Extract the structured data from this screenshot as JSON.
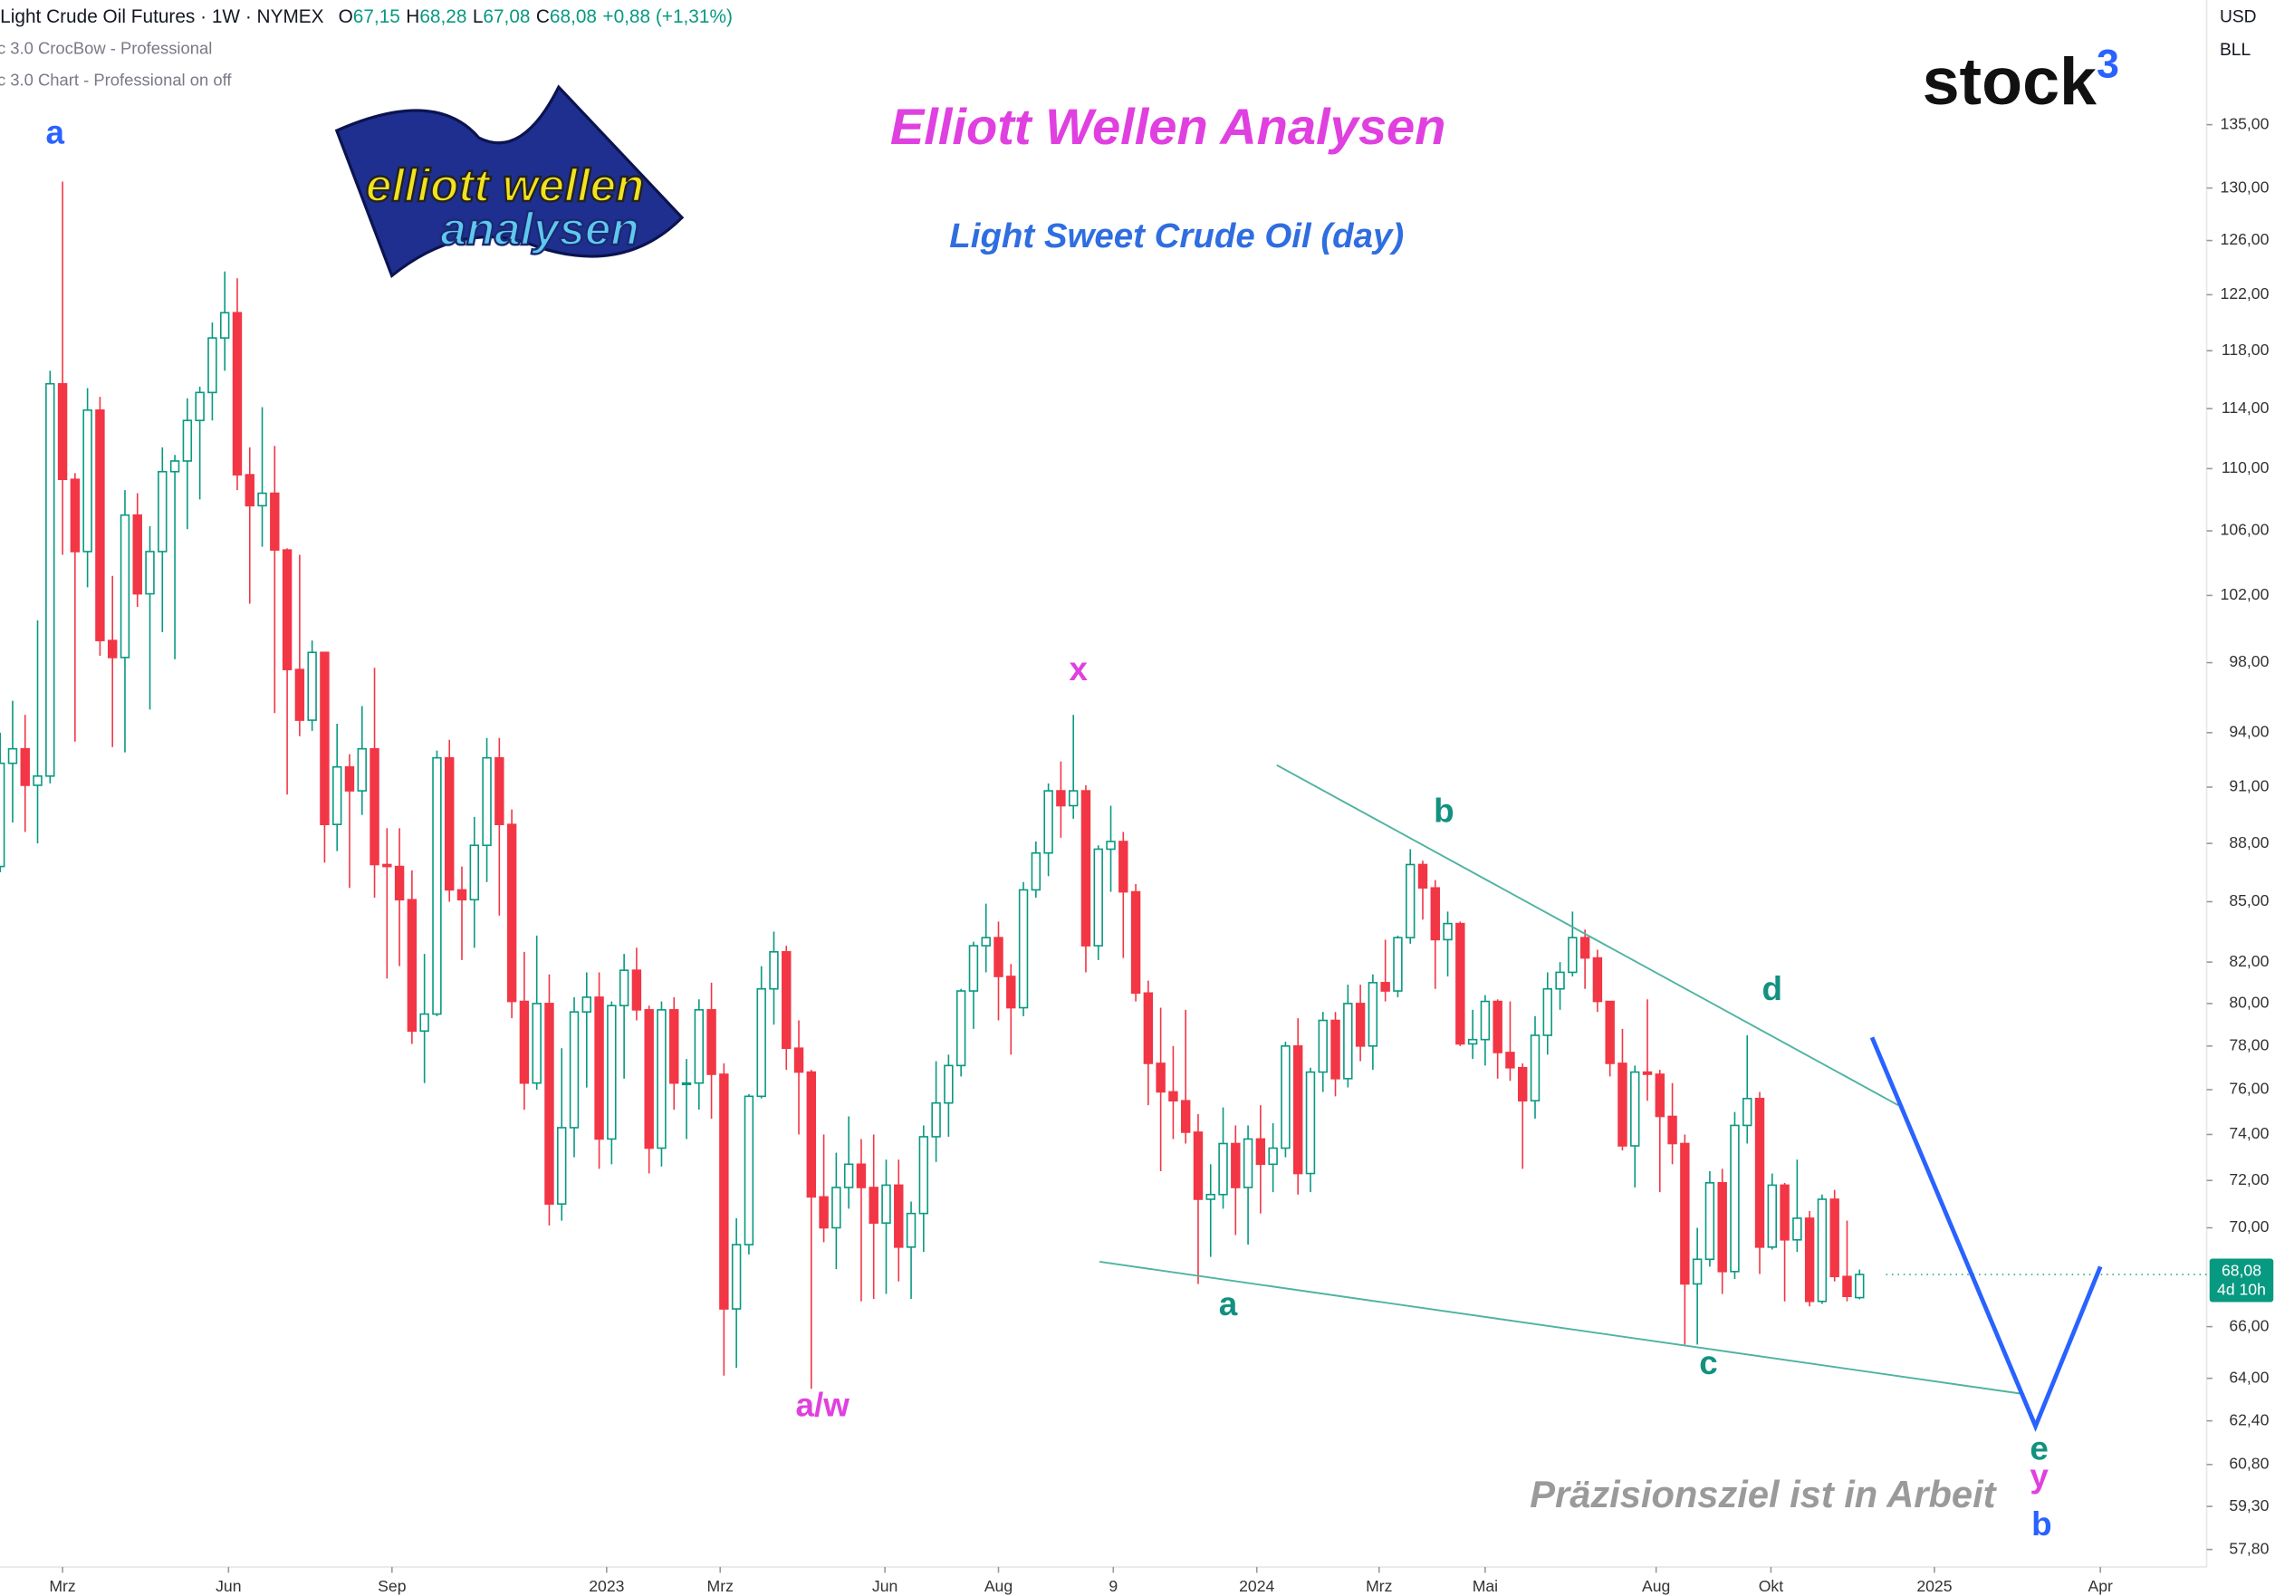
{
  "header": {
    "symbol": "Light Crude Oil Futures · 1W · NYMEX",
    "ohlc": [
      {
        "key": "O",
        "value": "67,15"
      },
      {
        "key": "H",
        "value": "68,28"
      },
      {
        "key": "L",
        "value": "67,08"
      },
      {
        "key": "C",
        "value": "68,08"
      }
    ],
    "change": "+0,88 (+1,31%)",
    "indicators": [
      "c 3.0 CrocBow - Professional",
      "c 3.0 Chart - Professional on off"
    ],
    "currency": "USD",
    "unit": "BLL"
  },
  "logo": {
    "text": "stock",
    "sup": "3"
  },
  "badge": {
    "line1": "elliott wellen",
    "line2": "analysen"
  },
  "chart_data": {
    "type": "candlestick",
    "title": "Elliott Wellen Analysen",
    "subtitle": "Light Sweet Crude Oil (day)",
    "note": "Präzisionsziel ist in Arbeit",
    "up_color": "#089981",
    "down_color": "#f23645",
    "log_scale": true,
    "grid": false,
    "xlim": [
      0,
      176.7
    ],
    "ylim": [
      57.2,
      145.4
    ],
    "xticks": [
      {
        "value": 5,
        "label": "Mrz"
      },
      {
        "value": 18.3,
        "label": "Jun"
      },
      {
        "value": 31.4,
        "label": "Sep"
      },
      {
        "value": 48.6,
        "label": "2023"
      },
      {
        "value": 57.7,
        "label": "Mrz"
      },
      {
        "value": 70.9,
        "label": "Jun"
      },
      {
        "value": 80,
        "label": "Aug"
      },
      {
        "value": 89.2,
        "label": "9"
      },
      {
        "value": 100.7,
        "label": "2024"
      },
      {
        "value": 110.5,
        "label": "Mrz"
      },
      {
        "value": 119,
        "label": "Mai"
      },
      {
        "value": 132.7,
        "label": "Aug"
      },
      {
        "value": 141.9,
        "label": "Okt"
      },
      {
        "value": 155,
        "label": "2025"
      },
      {
        "value": 168.3,
        "label": "Apr"
      }
    ],
    "yticks": [
      {
        "value": 135,
        "label": "135,00"
      },
      {
        "value": 130,
        "label": "130,00"
      },
      {
        "value": 126,
        "label": "126,00"
      },
      {
        "value": 122,
        "label": "122,00"
      },
      {
        "value": 118,
        "label": "118,00"
      },
      {
        "value": 114,
        "label": "114,00"
      },
      {
        "value": 110,
        "label": "110,00"
      },
      {
        "value": 106,
        "label": "106,00"
      },
      {
        "value": 102,
        "label": "102,00"
      },
      {
        "value": 98,
        "label": "98,00"
      },
      {
        "value": 94,
        "label": "94,00"
      },
      {
        "value": 91,
        "label": "91,00"
      },
      {
        "value": 88,
        "label": "88,00"
      },
      {
        "value": 85,
        "label": "85,00"
      },
      {
        "value": 82,
        "label": "82,00"
      },
      {
        "value": 80,
        "label": "80,00"
      },
      {
        "value": 78,
        "label": "78,00"
      },
      {
        "value": 76,
        "label": "76,00"
      },
      {
        "value": 74,
        "label": "74,00"
      },
      {
        "value": 72,
        "label": "72,00"
      },
      {
        "value": 70,
        "label": "70,00"
      },
      {
        "value": 66,
        "label": "66,00"
      },
      {
        "value": 64,
        "label": "64,00"
      },
      {
        "value": 62.4,
        "label": "62,40"
      },
      {
        "value": 60.8,
        "label": "60,80"
      },
      {
        "value": 59.3,
        "label": "59,30"
      },
      {
        "value": 57.8,
        "label": "57,80"
      }
    ],
    "last_price": {
      "value": 68.08,
      "label": "68,08",
      "countdown": "4d 10h"
    },
    "ohlc": [
      [
        86.8,
        94.0,
        86.5,
        92.3
      ],
      [
        92.3,
        95.8,
        89.1,
        93.1
      ],
      [
        93.1,
        95.0,
        88.6,
        91.1
      ],
      [
        91.1,
        100.5,
        88.0,
        91.6
      ],
      [
        91.6,
        116.6,
        91.2,
        115.7
      ],
      [
        115.7,
        130.5,
        104.5,
        109.3
      ],
      [
        109.3,
        109.7,
        93.5,
        104.7
      ],
      [
        104.7,
        115.4,
        102.5,
        113.9
      ],
      [
        113.9,
        114.8,
        98.4,
        99.3
      ],
      [
        99.3,
        103.2,
        93.2,
        98.3
      ],
      [
        98.3,
        108.6,
        92.9,
        107.0
      ],
      [
        107.0,
        108.4,
        101.3,
        102.1
      ],
      [
        102.1,
        106.3,
        95.3,
        104.7
      ],
      [
        104.7,
        111.4,
        99.8,
        109.8
      ],
      [
        109.8,
        110.9,
        98.2,
        110.5
      ],
      [
        110.5,
        114.7,
        106.1,
        113.2
      ],
      [
        113.2,
        115.5,
        108.0,
        115.1
      ],
      [
        115.1,
        120.0,
        113.2,
        118.9
      ],
      [
        118.9,
        123.7,
        116.6,
        120.7
      ],
      [
        120.7,
        123.2,
        108.6,
        109.6
      ],
      [
        109.6,
        111.4,
        101.5,
        107.6
      ],
      [
        107.6,
        114.1,
        105.0,
        108.4
      ],
      [
        108.4,
        111.5,
        95.1,
        104.8
      ],
      [
        104.8,
        104.9,
        90.6,
        97.6
      ],
      [
        97.6,
        104.5,
        93.8,
        94.7
      ],
      [
        94.7,
        99.3,
        94.1,
        98.6
      ],
      [
        98.6,
        98.6,
        87.0,
        89.0
      ],
      [
        89.0,
        94.5,
        87.6,
        92.1
      ],
      [
        92.1,
        92.8,
        85.7,
        90.8
      ],
      [
        90.8,
        95.5,
        89.5,
        93.1
      ],
      [
        93.1,
        97.7,
        85.2,
        86.9
      ],
      [
        86.9,
        88.8,
        81.2,
        86.8
      ],
      [
        86.8,
        88.8,
        81.8,
        85.1
      ],
      [
        85.1,
        86.6,
        78.1,
        78.7
      ],
      [
        78.7,
        82.4,
        76.3,
        79.5
      ],
      [
        79.5,
        93.0,
        79.4,
        92.6
      ],
      [
        92.6,
        93.6,
        85.0,
        85.6
      ],
      [
        85.6,
        86.8,
        82.1,
        85.1
      ],
      [
        85.1,
        89.4,
        82.7,
        87.9
      ],
      [
        87.9,
        93.7,
        86.0,
        92.6
      ],
      [
        92.6,
        93.7,
        84.3,
        89.0
      ],
      [
        89.0,
        89.8,
        79.3,
        80.1
      ],
      [
        80.1,
        82.5,
        75.1,
        76.3
      ],
      [
        76.3,
        83.3,
        76.0,
        80.0
      ],
      [
        80.0,
        81.4,
        70.1,
        71.0
      ],
      [
        71.0,
        77.9,
        70.3,
        74.3
      ],
      [
        74.3,
        80.3,
        73.0,
        79.6
      ],
      [
        79.6,
        81.5,
        76.1,
        80.3
      ],
      [
        80.3,
        81.5,
        72.5,
        73.8
      ],
      [
        73.8,
        80.1,
        72.7,
        79.9
      ],
      [
        79.9,
        82.4,
        76.5,
        81.6
      ],
      [
        81.6,
        82.7,
        79.2,
        79.7
      ],
      [
        79.7,
        79.9,
        72.3,
        73.4
      ],
      [
        73.4,
        80.1,
        72.6,
        79.7
      ],
      [
        79.7,
        80.3,
        75.1,
        76.3
      ],
      [
        76.3,
        77.4,
        73.8,
        76.3
      ],
      [
        76.3,
        80.2,
        75.1,
        79.7
      ],
      [
        79.7,
        81.0,
        74.7,
        76.7
      ],
      [
        76.7,
        77.2,
        64.1,
        66.7
      ],
      [
        66.7,
        70.4,
        64.4,
        69.3
      ],
      [
        69.3,
        75.8,
        68.9,
        75.7
      ],
      [
        75.7,
        81.8,
        75.6,
        80.7
      ],
      [
        80.7,
        83.5,
        79.0,
        82.5
      ],
      [
        82.5,
        82.8,
        76.9,
        77.9
      ],
      [
        77.9,
        79.2,
        74.0,
        76.8
      ],
      [
        76.8,
        76.9,
        63.6,
        71.3
      ],
      [
        71.3,
        74.0,
        69.4,
        70.0
      ],
      [
        70.0,
        73.2,
        68.3,
        71.7
      ],
      [
        71.7,
        74.8,
        70.8,
        72.7
      ],
      [
        72.7,
        73.8,
        67.0,
        71.7
      ],
      [
        71.7,
        74.0,
        67.1,
        70.2
      ],
      [
        70.2,
        72.9,
        67.3,
        71.8
      ],
      [
        71.8,
        72.9,
        67.8,
        69.2
      ],
      [
        69.2,
        71.1,
        67.1,
        70.6
      ],
      [
        70.6,
        74.4,
        69.0,
        73.9
      ],
      [
        73.9,
        77.3,
        72.8,
        75.4
      ],
      [
        75.4,
        77.6,
        73.9,
        77.1
      ],
      [
        77.1,
        80.7,
        76.6,
        80.6
      ],
      [
        80.6,
        83.0,
        78.8,
        82.8
      ],
      [
        82.8,
        84.9,
        81.5,
        83.2
      ],
      [
        83.2,
        84.0,
        79.2,
        81.3
      ],
      [
        81.3,
        81.9,
        77.6,
        79.8
      ],
      [
        79.8,
        86.0,
        79.4,
        85.6
      ],
      [
        85.6,
        88.1,
        85.2,
        87.5
      ],
      [
        87.5,
        91.2,
        86.3,
        90.8
      ],
      [
        90.8,
        92.4,
        88.3,
        90.0
      ],
      [
        90.0,
        95.0,
        89.3,
        90.8
      ],
      [
        90.8,
        91.1,
        81.5,
        82.8
      ],
      [
        82.8,
        87.9,
        82.1,
        87.7
      ],
      [
        87.7,
        90.0,
        85.5,
        88.1
      ],
      [
        88.1,
        88.6,
        82.2,
        85.5
      ],
      [
        85.5,
        85.9,
        80.1,
        80.5
      ],
      [
        80.5,
        81.1,
        75.3,
        77.2
      ],
      [
        77.2,
        79.8,
        72.4,
        75.9
      ],
      [
        75.9,
        78.0,
        73.8,
        75.5
      ],
      [
        75.5,
        79.7,
        73.6,
        74.1
      ],
      [
        74.1,
        74.9,
        67.7,
        71.2
      ],
      [
        71.2,
        72.7,
        68.8,
        71.4
      ],
      [
        71.4,
        75.2,
        70.8,
        73.6
      ],
      [
        73.6,
        74.4,
        69.7,
        71.7
      ],
      [
        71.7,
        74.4,
        69.3,
        73.8
      ],
      [
        73.8,
        75.3,
        70.6,
        72.7
      ],
      [
        72.7,
        74.5,
        71.5,
        73.4
      ],
      [
        73.4,
        78.2,
        73.0,
        78.0
      ],
      [
        78.0,
        79.3,
        71.4,
        72.3
      ],
      [
        72.3,
        77.0,
        71.5,
        76.8
      ],
      [
        76.8,
        79.6,
        75.9,
        79.2
      ],
      [
        79.2,
        79.6,
        75.7,
        76.5
      ],
      [
        76.5,
        80.9,
        76.1,
        80.0
      ],
      [
        80.0,
        80.9,
        77.3,
        78.0
      ],
      [
        78.0,
        81.4,
        76.9,
        81.0
      ],
      [
        81.0,
        83.1,
        80.1,
        80.6
      ],
      [
        80.6,
        83.3,
        80.3,
        83.2
      ],
      [
        83.2,
        87.7,
        82.9,
        86.9
      ],
      [
        86.9,
        87.1,
        84.1,
        85.7
      ],
      [
        85.7,
        86.1,
        80.7,
        83.1
      ],
      [
        83.1,
        84.5,
        81.3,
        83.9
      ],
      [
        83.9,
        84.0,
        78.0,
        78.1
      ],
      [
        78.1,
        79.7,
        77.4,
        78.3
      ],
      [
        78.3,
        80.4,
        77.1,
        80.1
      ],
      [
        80.1,
        80.2,
        76.5,
        77.7
      ],
      [
        77.7,
        80.1,
        76.4,
        77.0
      ],
      [
        77.0,
        77.2,
        72.5,
        75.5
      ],
      [
        75.5,
        79.4,
        74.7,
        78.5
      ],
      [
        78.5,
        81.5,
        77.6,
        80.7
      ],
      [
        80.7,
        82.0,
        79.7,
        81.5
      ],
      [
        81.5,
        84.5,
        81.3,
        83.2
      ],
      [
        83.2,
        83.6,
        80.7,
        82.2
      ],
      [
        82.2,
        82.6,
        79.6,
        80.1
      ],
      [
        80.1,
        80.1,
        76.6,
        77.2
      ],
      [
        77.2,
        78.8,
        73.3,
        73.5
      ],
      [
        73.5,
        77.1,
        71.7,
        76.8
      ],
      [
        76.8,
        80.2,
        75.5,
        76.7
      ],
      [
        76.7,
        76.9,
        71.5,
        74.8
      ],
      [
        74.8,
        76.3,
        72.7,
        73.6
      ],
      [
        73.6,
        74.0,
        65.3,
        67.7
      ],
      [
        67.7,
        70.0,
        65.3,
        68.7
      ],
      [
        68.7,
        72.4,
        68.4,
        71.9
      ],
      [
        71.9,
        72.5,
        67.3,
        68.2
      ],
      [
        68.2,
        75.0,
        67.9,
        74.4
      ],
      [
        74.4,
        78.5,
        73.6,
        75.6
      ],
      [
        75.6,
        75.9,
        68.1,
        69.2
      ],
      [
        69.2,
        72.3,
        69.1,
        71.8
      ],
      [
        71.8,
        71.9,
        67.0,
        69.5
      ],
      [
        69.5,
        72.9,
        69.0,
        70.4
      ],
      [
        70.4,
        70.7,
        66.8,
        67.0
      ],
      [
        67.0,
        71.4,
        66.9,
        71.2
      ],
      [
        71.2,
        71.6,
        67.8,
        68.0
      ],
      [
        68.0,
        70.3,
        67.0,
        67.2
      ],
      [
        67.15,
        68.28,
        67.08,
        68.08
      ]
    ],
    "wave_labels": [
      {
        "text": "a",
        "color": "#2962ff",
        "x": 4.4,
        "y": 134.2
      },
      {
        "text": "x",
        "color": "#e040e0",
        "x": 86.4,
        "y": 97.5
      },
      {
        "text": "a/w",
        "color": "#e040e0",
        "x": 65.9,
        "y": 62.9
      },
      {
        "text": "a",
        "color": "#12917f",
        "x": 98.4,
        "y": 66.8
      },
      {
        "text": "b",
        "color": "#12917f",
        "x": 115.7,
        "y": 89.6
      },
      {
        "text": "c",
        "color": "#12917f",
        "x": 136.9,
        "y": 64.5
      },
      {
        "text": "d",
        "color": "#12917f",
        "x": 142,
        "y": 80.6
      },
      {
        "text": "e",
        "color": "#12917f",
        "x": 163.4,
        "y": 61.3
      },
      {
        "text": "y",
        "color": "#e040e0",
        "x": 163.4,
        "y": 60.3
      },
      {
        "text": "b",
        "color": "#2962ff",
        "x": 163.6,
        "y": 58.6
      }
    ],
    "lines": [
      {
        "color": "#4fb3a0",
        "points": [
          [
            102.3,
            92.2
          ],
          [
            152.1,
            75.3
          ]
        ]
      },
      {
        "color": "#4fb3a0",
        "points": [
          [
            88.1,
            68.6
          ],
          [
            162.2,
            63.4
          ]
        ]
      },
      {
        "color": "#2962ff",
        "points": [
          [
            150,
            78.4
          ],
          [
            163.1,
            62.2
          ],
          [
            168.3,
            68.4
          ]
        ]
      }
    ]
  }
}
